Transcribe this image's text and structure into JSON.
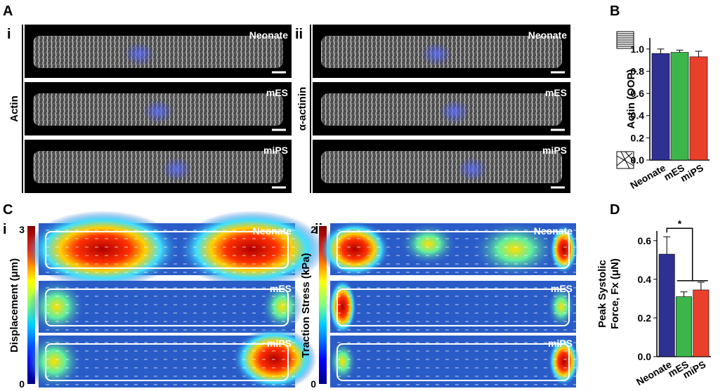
{
  "panel_letters": [
    "A",
    "B",
    "C",
    "D"
  ],
  "micrographs": [
    {
      "numeral": "i",
      "stain": "Actin",
      "rows": [
        "Neonate",
        "mES",
        "miPS"
      ]
    },
    {
      "numeral": "ii",
      "stain": "α-actinin",
      "rows": [
        "Neonate",
        "mES",
        "miPS"
      ]
    }
  ],
  "heatmaps": [
    {
      "numeral": "i",
      "colorbar_label": "Displacement (μm)",
      "colorbar_max": 3,
      "colorbar_min": 0,
      "rows": [
        "Neonate",
        "mES",
        "miPS"
      ]
    },
    {
      "numeral": "ii",
      "colorbar_label": "Traction Stress (kPa)",
      "colorbar_max": 2,
      "colorbar_min": 0,
      "rows": [
        "Neonate",
        "mES",
        "miPS"
      ]
    }
  ],
  "chart_data": [
    {
      "type": "bar",
      "ylabel": [
        "Actin (OOP)"
      ],
      "categories": [
        "Neonate",
        "mES",
        "miPS"
      ],
      "values": [
        0.96,
        0.97,
        0.93
      ],
      "errors": [
        0.04,
        0.02,
        0.05
      ],
      "colors": [
        "#2e3192",
        "#3cb54a",
        "#e8402a"
      ],
      "ylim": [
        0,
        1.1
      ],
      "yticks": [
        {
          "value": 0,
          "label": "0.0"
        },
        {
          "value": 0.2,
          "label": "0.2"
        },
        {
          "value": 0.4,
          "label": "0.4"
        },
        {
          "value": 0.6,
          "label": "0.6"
        },
        {
          "value": 0.8,
          "label": "0.8"
        },
        {
          "value": 1,
          "label": "1.0"
        }
      ]
    },
    {
      "type": "bar",
      "ylabel": [
        "Peak Systolic",
        "Force, Fx (μN)"
      ],
      "categories": [
        "Neonate",
        "mES",
        "miPS"
      ],
      "values": [
        0.53,
        0.31,
        0.345
      ],
      "errors": [
        0.09,
        0.025,
        0.04
      ],
      "colors": [
        "#2e3192",
        "#3cb54a",
        "#e8402a"
      ],
      "ylim": [
        0,
        0.65
      ],
      "yticks": [
        {
          "value": 0,
          "label": "0.0"
        },
        {
          "value": 0.2,
          "label": "0.2"
        },
        {
          "value": 0.4,
          "label": "0.4"
        },
        {
          "value": 0.6,
          "label": "0.6"
        }
      ],
      "annotation": "*"
    }
  ]
}
